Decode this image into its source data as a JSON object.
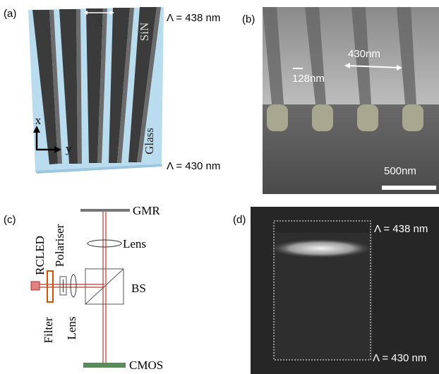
{
  "panel_a": {
    "label": "(a)",
    "period_symbol": "Λ",
    "top_material": "SiN",
    "substrate": "Glass",
    "axis_x": "x",
    "axis_y": "y",
    "top_period": "Λ = 438 nm",
    "bottom_period": "Λ = 430 nm"
  },
  "panel_b": {
    "label": "(b)",
    "period": "430nm",
    "width": "128nm",
    "scale_bar": "500nm"
  },
  "panel_c": {
    "label": "(c)",
    "gmr": "GMR",
    "lens_top": "Lens",
    "source": "RCLED",
    "polariser": "Polariser",
    "splitter": "BS",
    "filter": "Filter",
    "lens_side": "Lens",
    "camera": "CMOS"
  },
  "panel_d": {
    "label": "(d)",
    "top_period": "Λ = 438 nm",
    "bottom_period": "Λ = 430 nm"
  }
}
